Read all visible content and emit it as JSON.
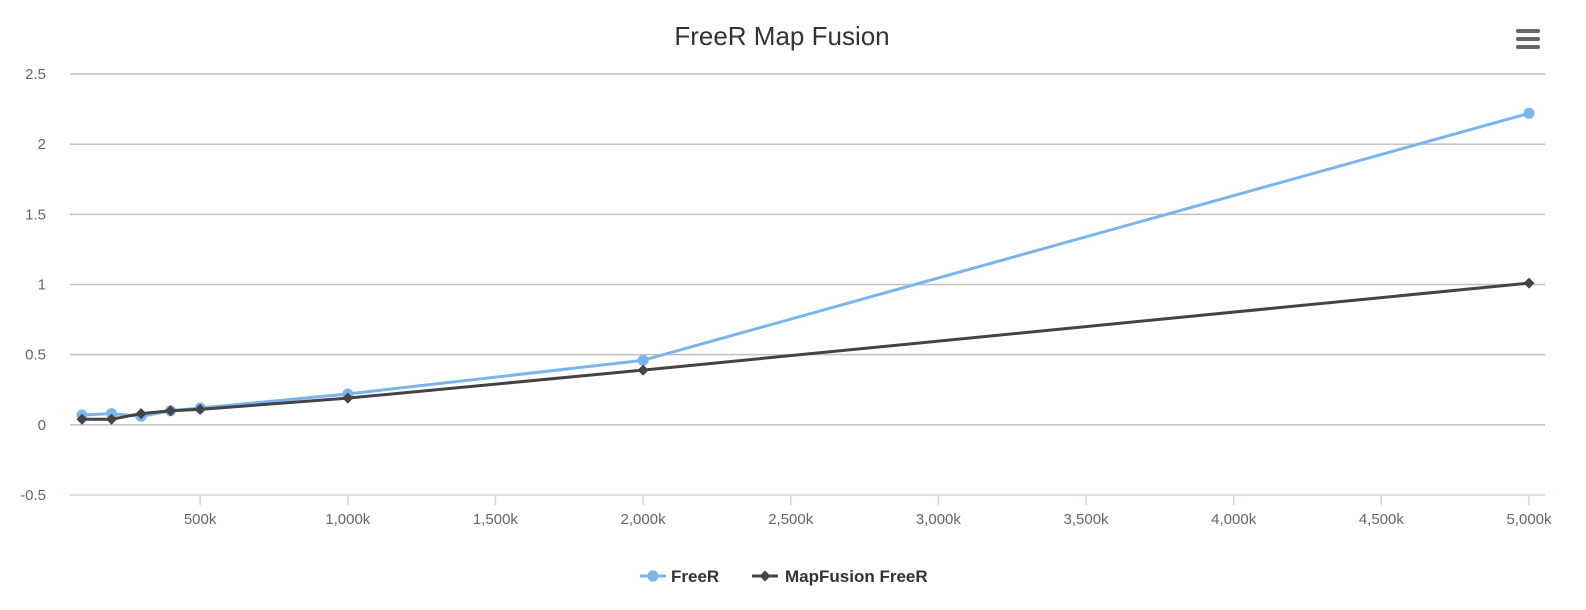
{
  "chart_data": {
    "type": "line",
    "title": "FreeR Map Fusion",
    "xlabel": "",
    "ylabel": "",
    "xlim": [
      50,
      5050
    ],
    "ylim": [
      -0.5,
      2.5
    ],
    "x_ticks": [
      500,
      1000,
      1500,
      2000,
      2500,
      3000,
      3500,
      4000,
      4500,
      5000
    ],
    "x_tick_labels": [
      "500k",
      "1,000k",
      "1,500k",
      "2,000k",
      "2,500k",
      "3,000k",
      "3,500k",
      "4,000k",
      "4,500k",
      "5,000k"
    ],
    "y_ticks": [
      -0.5,
      0,
      0.5,
      1,
      1.5,
      2,
      2.5
    ],
    "y_tick_labels": [
      "-0.5",
      "0",
      "0.5",
      "1",
      "1.5",
      "2",
      "2.5"
    ],
    "grid": true,
    "legend_position": "bottom-center",
    "series": [
      {
        "name": "FreeR",
        "color": "#7cb5ec",
        "marker": "circle",
        "x": [
          100,
          200,
          300,
          400,
          500,
          1000,
          2000,
          5000
        ],
        "y": [
          0.07,
          0.08,
          0.06,
          0.1,
          0.12,
          0.22,
          0.46,
          2.22
        ]
      },
      {
        "name": "MapFusion FreeR",
        "color": "#434348",
        "marker": "diamond",
        "x": [
          100,
          200,
          300,
          400,
          500,
          1000,
          2000,
          5000
        ],
        "y": [
          0.04,
          0.04,
          0.08,
          0.1,
          0.11,
          0.19,
          0.39,
          1.01
        ]
      }
    ]
  },
  "menu": {
    "icon": "hamburger-menu-icon"
  }
}
